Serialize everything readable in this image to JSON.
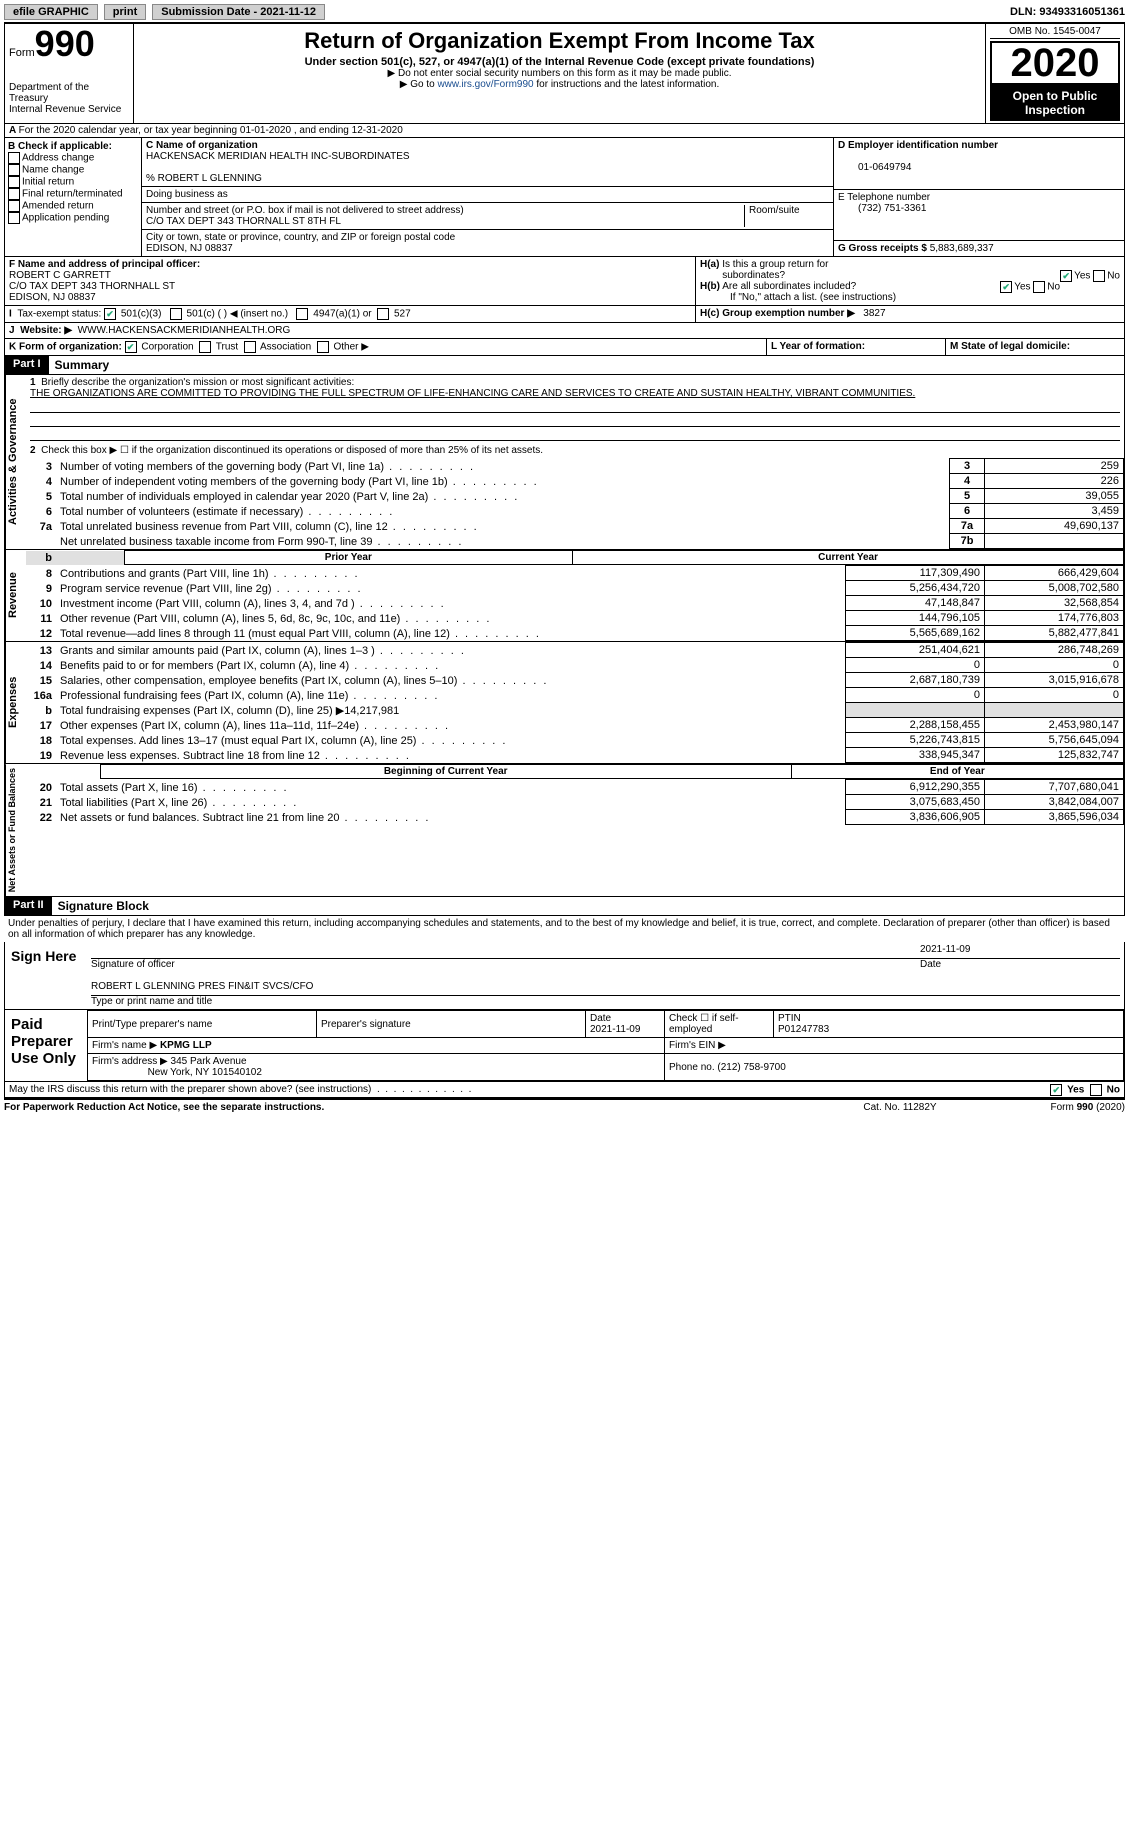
{
  "topbar": {
    "efile": "efile GRAPHIC",
    "print": "print",
    "subdate_label": "Submission Date - ",
    "subdate": "2021-11-12",
    "dln_label": "DLN: ",
    "dln": "93493316051361"
  },
  "header": {
    "form_prefix": "Form",
    "form_no": "990",
    "dept": "Department of the Treasury\nInternal Revenue Service",
    "title": "Return of Organization Exempt From Income Tax",
    "subtitle": "Under section 501(c), 527, or 4947(a)(1) of the Internal Revenue Code (except private foundations)",
    "note1": "▶ Do not enter social security numbers on this form as it may be made public.",
    "note2_pre": "▶ Go to ",
    "note2_link": "www.irs.gov/Form990",
    "note2_post": " for instructions and the latest information.",
    "omb": "OMB No. 1545-0047",
    "year": "2020",
    "open": "Open to Public Inspection"
  },
  "a_line": "For the 2020 calendar year, or tax year beginning 01-01-2020   , and ending 12-31-2020",
  "b": {
    "label": "B Check if applicable:",
    "items": [
      "Address change",
      "Name change",
      "Initial return",
      "Final return/terminated",
      "Amended return",
      "Application pending"
    ]
  },
  "c": {
    "name_label": "C Name of organization",
    "name": "HACKENSACK MERIDIAN HEALTH INC-SUBORDINATES",
    "care": "% ROBERT L GLENNING",
    "dba_label": "Doing business as",
    "street_label": "Number and street (or P.O. box if mail is not delivered to street address)",
    "street": "C/O TAX DEPT 343 THORNALL ST 8TH FL",
    "room_label": "Room/suite",
    "city_label": "City or town, state or province, country, and ZIP or foreign postal code",
    "city": "EDISON, NJ  08837"
  },
  "d": {
    "label": "D Employer identification number",
    "val": "01-0649794"
  },
  "e": {
    "label": "E Telephone number",
    "val": "(732) 751-3361"
  },
  "g": {
    "label": "G Gross receipts $ ",
    "val": "5,883,689,337"
  },
  "f": {
    "label": "F Name and address of principal officer:",
    "name": "ROBERT C GARRETT",
    "addr1": "C/O TAX DEPT 343 THORNHALL ST",
    "addr2": "EDISON, NJ  08837"
  },
  "h": {
    "a_label": "H(a)  Is this a group return for subordinates?",
    "b_label": "H(b)  Are all subordinates included?",
    "b_note": "If \"No,\" attach a list. (see instructions)",
    "c_label": "H(c)  Group exemption number ▶",
    "c_val": "3827",
    "yes": "Yes",
    "no": "No"
  },
  "i": {
    "label": "Tax-exempt status:",
    "opts": [
      "501(c)(3)",
      "501(c) (   ) ◀ (insert no.)",
      "4947(a)(1) or",
      "527"
    ]
  },
  "j": {
    "label": "Website: ▶",
    "val": "WWW.HACKENSACKMERIDIANHEALTH.ORG"
  },
  "k": {
    "label": "K Form of organization:",
    "opts": [
      "Corporation",
      "Trust",
      "Association",
      "Other ▶"
    ]
  },
  "l": {
    "label": "L Year of formation:"
  },
  "m": {
    "label": "M State of legal domicile:"
  },
  "part1": {
    "label": "Part I",
    "title": "Summary"
  },
  "mission": {
    "line": "1  Briefly describe the organization's mission or most significant activities:",
    "text": "THE ORGANIZATIONS ARE COMMITTED TO PROVIDING THE FULL SPECTRUM OF LIFE-ENHANCING CARE AND SERVICES TO CREATE AND SUSTAIN HEALTHY, VIBRANT COMMUNITIES."
  },
  "line2": "Check this box ▶ ☐  if the organization discontinued its operations or disposed of more than 25% of its net assets.",
  "vlabels": {
    "gov": "Activities & Governance",
    "rev": "Revenue",
    "exp": "Expenses",
    "net": "Net Assets or Fund Balances"
  },
  "gov_lines": [
    {
      "n": "3",
      "d": "Number of voting members of the governing body (Part VI, line 1a)",
      "b": "3",
      "v": "259"
    },
    {
      "n": "4",
      "d": "Number of independent voting members of the governing body (Part VI, line 1b)",
      "b": "4",
      "v": "226"
    },
    {
      "n": "5",
      "d": "Total number of individuals employed in calendar year 2020 (Part V, line 2a)",
      "b": "5",
      "v": "39,055"
    },
    {
      "n": "6",
      "d": "Total number of volunteers (estimate if necessary)",
      "b": "6",
      "v": "3,459"
    },
    {
      "n": "7a",
      "d": "Total unrelated business revenue from Part VIII, column (C), line 12",
      "b": "7a",
      "v": "49,690,137"
    },
    {
      "n": "",
      "d": "Net unrelated business taxable income from Form 990-T, line 39",
      "b": "7b",
      "v": ""
    }
  ],
  "colhdr": {
    "prior": "Prior Year",
    "current": "Current Year"
  },
  "rev_lines": [
    {
      "n": "8",
      "d": "Contributions and grants (Part VIII, line 1h)",
      "p": "117,309,490",
      "c": "666,429,604"
    },
    {
      "n": "9",
      "d": "Program service revenue (Part VIII, line 2g)",
      "p": "5,256,434,720",
      "c": "5,008,702,580"
    },
    {
      "n": "10",
      "d": "Investment income (Part VIII, column (A), lines 3, 4, and 7d )",
      "p": "47,148,847",
      "c": "32,568,854"
    },
    {
      "n": "11",
      "d": "Other revenue (Part VIII, column (A), lines 5, 6d, 8c, 9c, 10c, and 11e)",
      "p": "144,796,105",
      "c": "174,776,803"
    },
    {
      "n": "12",
      "d": "Total revenue—add lines 8 through 11 (must equal Part VIII, column (A), line 12)",
      "p": "5,565,689,162",
      "c": "5,882,477,841"
    }
  ],
  "exp_lines": [
    {
      "n": "13",
      "d": "Grants and similar amounts paid (Part IX, column (A), lines 1–3 )",
      "p": "251,404,621",
      "c": "286,748,269"
    },
    {
      "n": "14",
      "d": "Benefits paid to or for members (Part IX, column (A), line 4)",
      "p": "0",
      "c": "0"
    },
    {
      "n": "15",
      "d": "Salaries, other compensation, employee benefits (Part IX, column (A), lines 5–10)",
      "p": "2,687,180,739",
      "c": "3,015,916,678"
    },
    {
      "n": "16a",
      "d": "Professional fundraising fees (Part IX, column (A), line 11e)",
      "p": "0",
      "c": "0"
    },
    {
      "n": "b",
      "d": "Total fundraising expenses (Part IX, column (D), line 25) ▶14,217,981",
      "p": "",
      "c": "",
      "grey": true
    },
    {
      "n": "17",
      "d": "Other expenses (Part IX, column (A), lines 11a–11d, 11f–24e)",
      "p": "2,288,158,455",
      "c": "2,453,980,147"
    },
    {
      "n": "18",
      "d": "Total expenses. Add lines 13–17 (must equal Part IX, column (A), line 25)",
      "p": "5,226,743,815",
      "c": "5,756,645,094"
    },
    {
      "n": "19",
      "d": "Revenue less expenses. Subtract line 18 from line 12",
      "p": "338,945,347",
      "c": "125,832,747"
    }
  ],
  "colhdr2": {
    "beg": "Beginning of Current Year",
    "end": "End of Year"
  },
  "net_lines": [
    {
      "n": "20",
      "d": "Total assets (Part X, line 16)",
      "p": "6,912,290,355",
      "c": "7,707,680,041"
    },
    {
      "n": "21",
      "d": "Total liabilities (Part X, line 26)",
      "p": "3,075,683,450",
      "c": "3,842,084,007"
    },
    {
      "n": "22",
      "d": "Net assets or fund balances. Subtract line 21 from line 20",
      "p": "3,836,606,905",
      "c": "3,865,596,034"
    }
  ],
  "part2": {
    "label": "Part II",
    "title": "Signature Block"
  },
  "perjury": "Under penalties of perjury, I declare that I have examined this return, including accompanying schedules and statements, and to the best of my knowledge and belief, it is true, correct, and complete. Declaration of preparer (other than officer) is based on all information of which preparer has any knowledge.",
  "sign": {
    "here": "Sign Here",
    "date": "2021-11-09",
    "sig_label": "Signature of officer",
    "date_label": "Date",
    "name": "ROBERT L GLENNING  PRES FIN&IT SVCS/CFO",
    "name_label": "Type or print name and title"
  },
  "paid": {
    "label": "Paid Preparer Use Only",
    "h1": "Print/Type preparer's name",
    "h2": "Preparer's signature",
    "h3": "Date",
    "h3v": "2021-11-09",
    "h4": "Check ☐ if self-employed",
    "h5": "PTIN",
    "h5v": "P01247783",
    "firm_label": "Firm's name   ▶",
    "firm": "KPMG LLP",
    "ein_label": "Firm's EIN ▶",
    "addr_label": "Firm's address ▶",
    "addr1": "345 Park Avenue",
    "addr2": "New York, NY  101540102",
    "phone_label": "Phone no. ",
    "phone": "(212) 758-9700"
  },
  "discuss": "May the IRS discuss this return with the preparer shown above? (see instructions)",
  "footer": {
    "left": "For Paperwork Reduction Act Notice, see the separate instructions.",
    "mid": "Cat. No. 11282Y",
    "right": "Form 990 (2020)"
  }
}
